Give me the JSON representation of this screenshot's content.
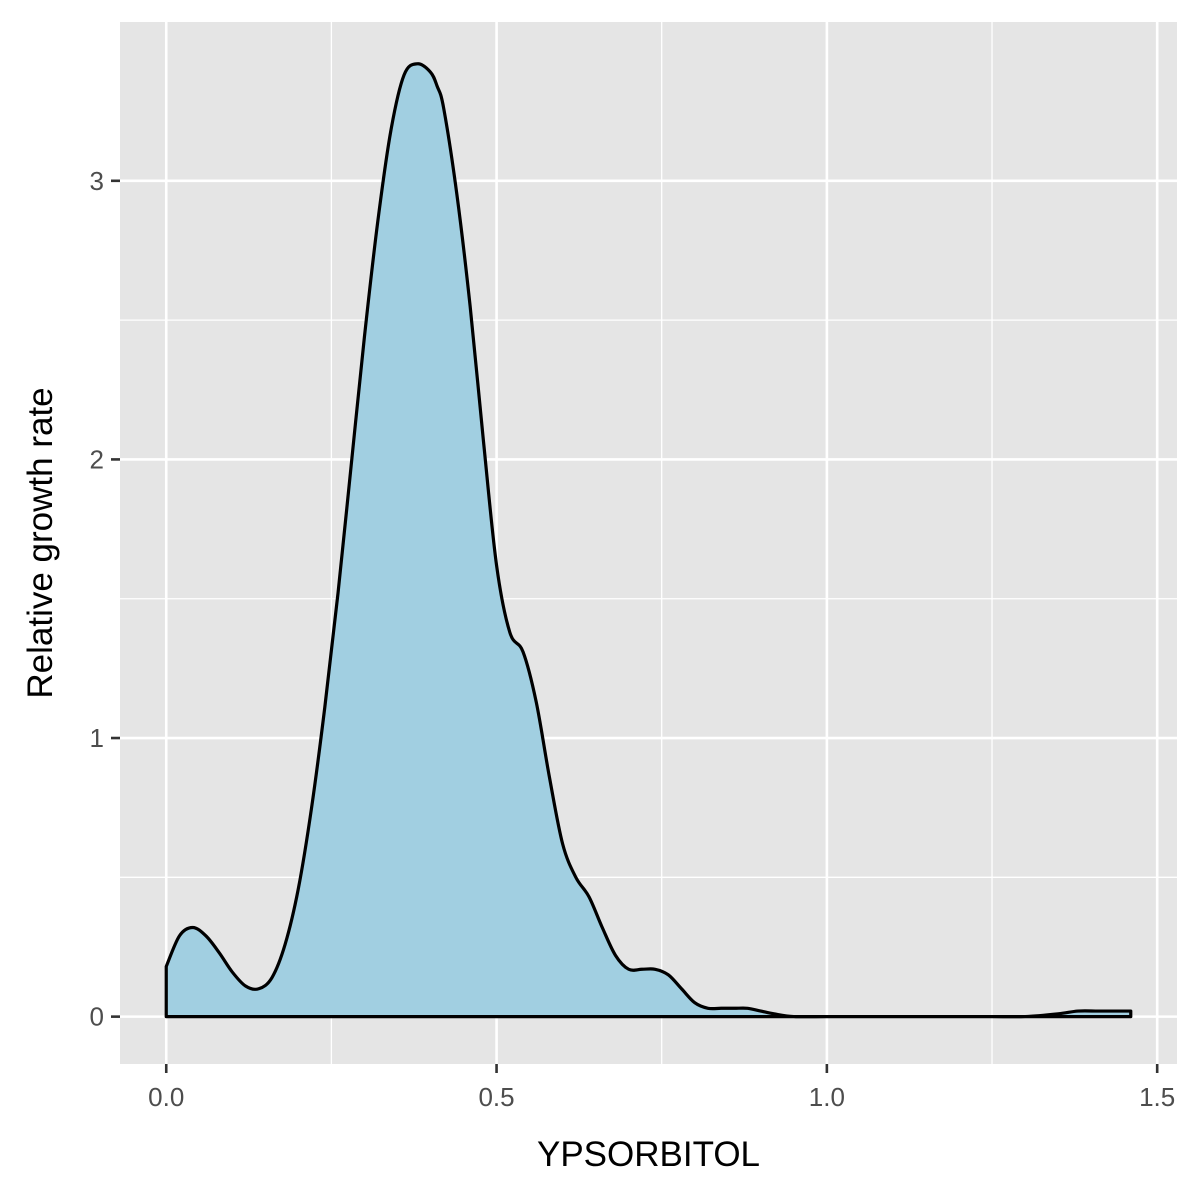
{
  "chart_data": {
    "type": "area",
    "xlabel": "YPSORBITOL",
    "ylabel": "Relative growth rate",
    "xlim": [
      -0.07,
      1.53
    ],
    "ylim": [
      -0.17,
      3.57
    ],
    "x_ticks": [
      0.0,
      0.5,
      1.0,
      1.5
    ],
    "x_tick_labels": [
      "0.0",
      "0.5",
      "1.0",
      "1.5"
    ],
    "y_ticks": [
      0,
      1,
      2,
      3
    ],
    "y_tick_labels": [
      "0",
      "1",
      "2",
      "3"
    ],
    "grid": true,
    "legend": "none",
    "fill_color": "#a1cfe1",
    "line_color": "#000000",
    "panel_background": "#e5e5e5",
    "series": [
      {
        "x": [
          0.0,
          0.02,
          0.04,
          0.06,
          0.08,
          0.1,
          0.12,
          0.14,
          0.16,
          0.18,
          0.2,
          0.22,
          0.24,
          0.26,
          0.28,
          0.3,
          0.32,
          0.34,
          0.36,
          0.38,
          0.4,
          0.41,
          0.42,
          0.44,
          0.46,
          0.48,
          0.5,
          0.52,
          0.54,
          0.56,
          0.58,
          0.6,
          0.62,
          0.64,
          0.66,
          0.68,
          0.7,
          0.72,
          0.74,
          0.76,
          0.78,
          0.8,
          0.82,
          0.84,
          0.86,
          0.88,
          0.9,
          0.92,
          0.95,
          1.0,
          1.05,
          1.1,
          1.15,
          1.2,
          1.25,
          1.3,
          1.35,
          1.38,
          1.41,
          1.43,
          1.46
        ],
        "y": [
          0.18,
          0.29,
          0.32,
          0.29,
          0.23,
          0.16,
          0.11,
          0.1,
          0.14,
          0.26,
          0.46,
          0.75,
          1.11,
          1.52,
          1.98,
          2.44,
          2.85,
          3.18,
          3.38,
          3.42,
          3.39,
          3.34,
          3.26,
          2.95,
          2.55,
          2.07,
          1.62,
          1.38,
          1.31,
          1.13,
          0.86,
          0.62,
          0.5,
          0.43,
          0.32,
          0.22,
          0.17,
          0.17,
          0.17,
          0.15,
          0.1,
          0.05,
          0.03,
          0.03,
          0.03,
          0.03,
          0.02,
          0.01,
          0.0,
          0.0,
          0.0,
          0.0,
          0.0,
          0.0,
          0.0,
          0.0,
          0.01,
          0.02,
          0.02,
          0.02,
          0.02
        ]
      }
    ]
  }
}
